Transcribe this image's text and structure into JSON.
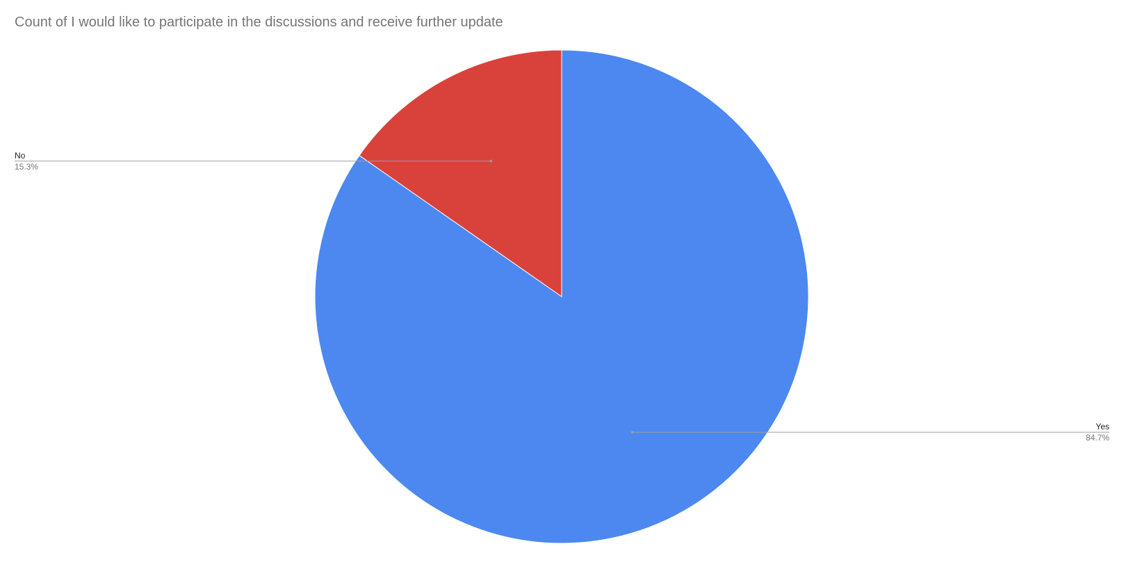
{
  "chart_data": {
    "type": "pie",
    "title": "Count of I would like to participate in the discussions and receive further update",
    "start_angle_deg": 0,
    "direction": "counterclockwise",
    "slices": [
      {
        "label": "No",
        "value": 15.3,
        "percent_label": "15.3%",
        "color": "#d8423b",
        "label_side": "left"
      },
      {
        "label": "Yes",
        "value": 84.7,
        "percent_label": "84.7%",
        "color": "#4c88f0",
        "label_side": "right"
      }
    ],
    "legend": "none"
  }
}
